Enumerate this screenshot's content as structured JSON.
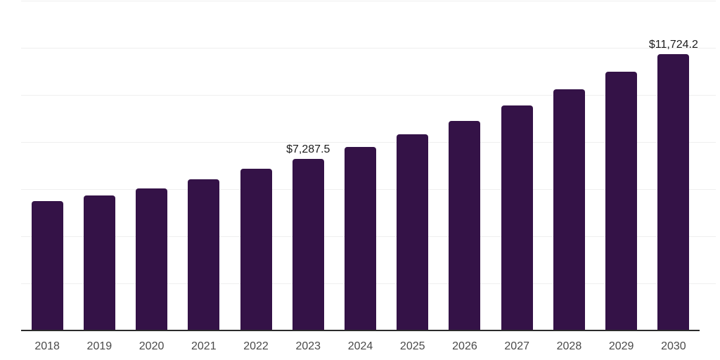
{
  "chart_data": {
    "type": "bar",
    "title": "",
    "xlabel": "",
    "ylabel": "",
    "categories": [
      "2018",
      "2019",
      "2020",
      "2021",
      "2022",
      "2023",
      "2024",
      "2025",
      "2026",
      "2027",
      "2028",
      "2029",
      "2030"
    ],
    "values": [
      5495,
      5710,
      6010,
      6395,
      6845,
      7287.5,
      7770,
      8325,
      8900,
      9540,
      10230,
      10975,
      11724.2
    ],
    "visible_data_labels": [
      "",
      "",
      "",
      "",
      "",
      "$7,287.5",
      "",
      "",
      "",
      "",
      "",
      "",
      "$11,724.2"
    ],
    "ylim": [
      0,
      14000
    ],
    "grid_step": 2000,
    "grid": true,
    "legend": false,
    "y_axis_tick_labels_shown": false,
    "colors": {
      "bar": "#341247",
      "grid": "#efefef",
      "axis": "#2b2b2b",
      "tick_label": "#4a4a4a",
      "data_label": "#1c1c1c",
      "background": "#ffffff"
    }
  }
}
